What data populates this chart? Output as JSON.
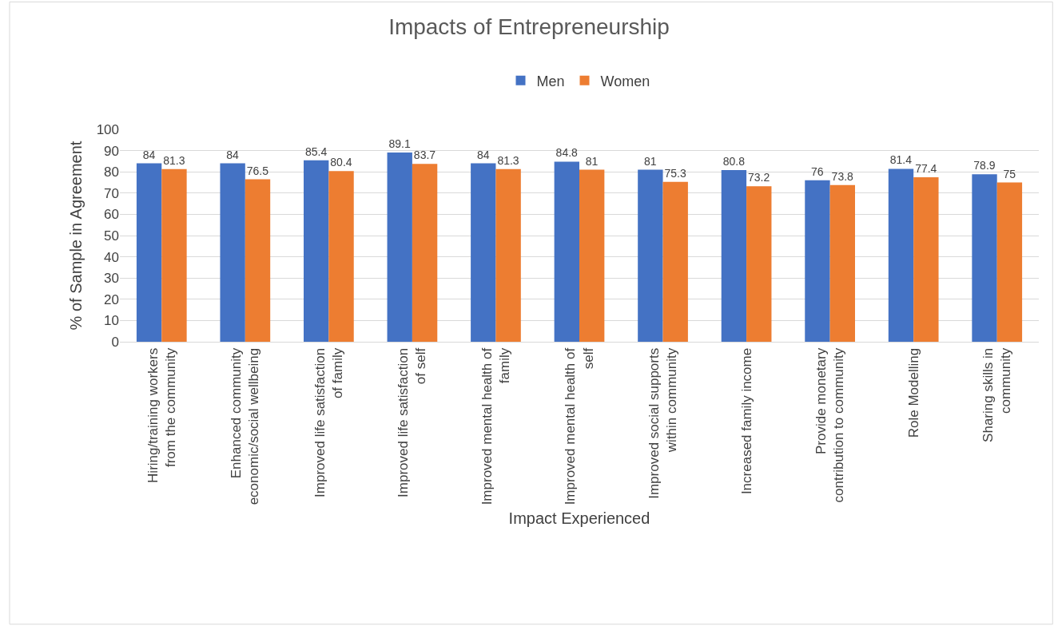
{
  "chart_data": {
    "type": "bar",
    "title": "Impacts of Entrepreneurship",
    "xlabel": "Impact Experienced",
    "ylabel": "% of Sample in Agreement",
    "categories": [
      "Hiring/training workers from the community",
      "Enhanced community economic/social wellbeing",
      "Improved life satisfaction of family",
      "Improved life satisfaction of self",
      "Improved mental health of family",
      "Improved mental health of self",
      "Improved social supports within community",
      "Increased family income",
      "Provide monetary contribution to community",
      "Role Modelling",
      "Sharing skills in community"
    ],
    "series": [
      {
        "name": "Men",
        "color": "#4472c4",
        "values": [
          84,
          84,
          85.4,
          89.1,
          84,
          84.8,
          81,
          80.8,
          76,
          81.4,
          78.9
        ]
      },
      {
        "name": "Women",
        "color": "#ed7d31",
        "values": [
          81.3,
          76.5,
          80.4,
          83.7,
          81.3,
          81,
          75.3,
          73.2,
          73.8,
          77.4,
          75
        ]
      }
    ],
    "ylim": [
      0,
      100
    ],
    "yticks": [
      0,
      10,
      20,
      30,
      40,
      50,
      60,
      70,
      80,
      90,
      100
    ],
    "grid": "y",
    "legend": "top",
    "data_labels": true
  }
}
